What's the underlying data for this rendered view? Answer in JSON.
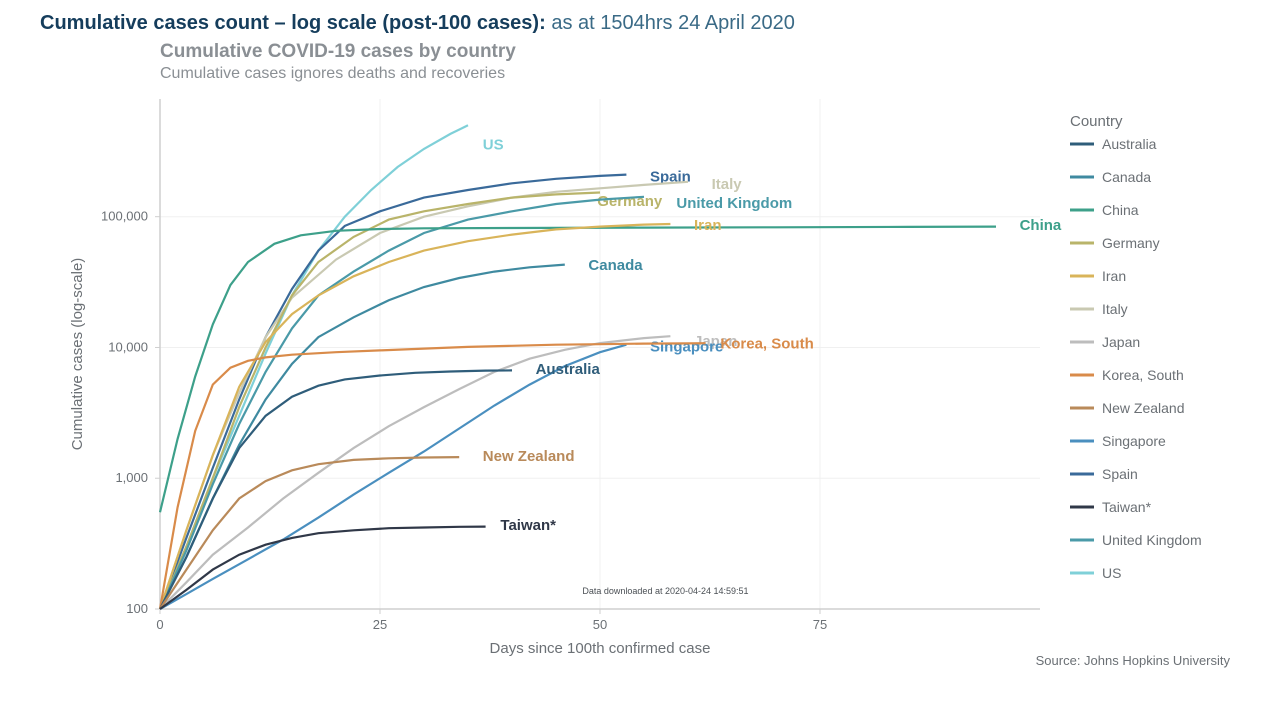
{
  "headline": {
    "bold": "Cumulative cases count – log scale (post-100 cases):",
    "rest": " as at 1504hrs 24 April 2020"
  },
  "chart": {
    "type": "line",
    "title": "Cumulative COVID-19 cases by country",
    "subtitle": "Cumulative cases ignores deaths and recoveries",
    "xlabel": "Days since 100th confirmed case",
    "ylabel": "Cumulative cases (log-scale)",
    "xlim": [
      0,
      100
    ],
    "xticks": [
      0,
      25,
      50,
      75
    ],
    "ylim_log": [
      2,
      5.9
    ],
    "yticks": [
      100,
      1000,
      10000,
      100000
    ],
    "ytick_labels": [
      "100",
      "1,000",
      "10,000",
      "100,000"
    ],
    "background_color": "#ffffff",
    "grid_color": "#f0f0f0",
    "axis_color": "#cfcfcf",
    "text_color": "#6b7075",
    "title_fontsize": 19,
    "subtitle_fontsize": 16,
    "label_fontsize": 15,
    "tick_fontsize": 13,
    "line_width": 2.2,
    "download_note": "Data downloaded at 2020-04-24 14:59:51",
    "source": "Source: Johns Hopkins University",
    "legend": {
      "title": "Country",
      "items": [
        {
          "label": "Australia",
          "color": "#2f5d7a"
        },
        {
          "label": "Canada",
          "color": "#3f8aa0"
        },
        {
          "label": "China",
          "color": "#3da08a"
        },
        {
          "label": "Germany",
          "color": "#b9b46a"
        },
        {
          "label": "Iran",
          "color": "#d9b45a"
        },
        {
          "label": "Italy",
          "color": "#c9c9b2"
        },
        {
          "label": "Japan",
          "color": "#bdbdbd"
        },
        {
          "label": "Korea, South",
          "color": "#d98b4a"
        },
        {
          "label": "New Zealand",
          "color": "#b98a5a"
        },
        {
          "label": "Singapore",
          "color": "#4a8fbf"
        },
        {
          "label": "Spain",
          "color": "#3a6a9a"
        },
        {
          "label": "Taiwan*",
          "color": "#303848"
        },
        {
          "label": "United Kingdom",
          "color": "#4a9aa8"
        },
        {
          "label": "US",
          "color": "#7fd0d8"
        }
      ]
    },
    "series": [
      {
        "name": "US",
        "color": "#7fd0d8",
        "label_xy": [
          36,
          350000
        ],
        "points": [
          [
            0,
            100
          ],
          [
            3,
            300
          ],
          [
            6,
            1000
          ],
          [
            9,
            3000
          ],
          [
            12,
            9000
          ],
          [
            15,
            25000
          ],
          [
            18,
            55000
          ],
          [
            21,
            100000
          ],
          [
            24,
            160000
          ],
          [
            27,
            240000
          ],
          [
            30,
            330000
          ],
          [
            33,
            430000
          ],
          [
            35,
            500000
          ]
        ]
      },
      {
        "name": "Spain",
        "color": "#3a6a9a",
        "label_xy": [
          55,
          200000
        ],
        "points": [
          [
            0,
            100
          ],
          [
            3,
            350
          ],
          [
            6,
            1200
          ],
          [
            9,
            4000
          ],
          [
            12,
            12000
          ],
          [
            15,
            28000
          ],
          [
            18,
            55000
          ],
          [
            21,
            85000
          ],
          [
            25,
            110000
          ],
          [
            30,
            140000
          ],
          [
            35,
            160000
          ],
          [
            40,
            180000
          ],
          [
            45,
            195000
          ],
          [
            50,
            205000
          ],
          [
            53,
            210000
          ]
        ]
      },
      {
        "name": "Italy",
        "color": "#c9c9b2",
        "label_xy": [
          62,
          175000
        ],
        "points": [
          [
            0,
            100
          ],
          [
            3,
            400
          ],
          [
            6,
            1500
          ],
          [
            9,
            4500
          ],
          [
            12,
            12000
          ],
          [
            15,
            24000
          ],
          [
            20,
            47000
          ],
          [
            25,
            75000
          ],
          [
            30,
            100000
          ],
          [
            35,
            120000
          ],
          [
            40,
            140000
          ],
          [
            45,
            155000
          ],
          [
            50,
            165000
          ],
          [
            55,
            175000
          ],
          [
            60,
            185000
          ]
        ]
      },
      {
        "name": "Germany",
        "color": "#b9b46a",
        "label_xy": [
          49,
          130000
        ],
        "points": [
          [
            0,
            100
          ],
          [
            3,
            300
          ],
          [
            6,
            1000
          ],
          [
            9,
            3500
          ],
          [
            12,
            10000
          ],
          [
            15,
            25000
          ],
          [
            18,
            45000
          ],
          [
            22,
            70000
          ],
          [
            26,
            95000
          ],
          [
            30,
            110000
          ],
          [
            35,
            125000
          ],
          [
            40,
            140000
          ],
          [
            45,
            148000
          ],
          [
            50,
            153000
          ]
        ]
      },
      {
        "name": "United Kingdom",
        "color": "#4a9aa8",
        "label_xy": [
          58,
          125000
        ],
        "points": [
          [
            0,
            100
          ],
          [
            3,
            280
          ],
          [
            6,
            900
          ],
          [
            9,
            2600
          ],
          [
            12,
            6500
          ],
          [
            15,
            14000
          ],
          [
            18,
            25000
          ],
          [
            22,
            38000
          ],
          [
            26,
            55000
          ],
          [
            30,
            75000
          ],
          [
            35,
            95000
          ],
          [
            40,
            110000
          ],
          [
            45,
            125000
          ],
          [
            50,
            135000
          ],
          [
            55,
            142000
          ]
        ]
      },
      {
        "name": "China",
        "color": "#3da08a",
        "label_xy": [
          97,
          85000
        ],
        "points": [
          [
            0,
            550
          ],
          [
            2,
            2000
          ],
          [
            4,
            6000
          ],
          [
            6,
            15000
          ],
          [
            8,
            30000
          ],
          [
            10,
            45000
          ],
          [
            13,
            62000
          ],
          [
            16,
            72000
          ],
          [
            20,
            78000
          ],
          [
            25,
            80500
          ],
          [
            30,
            81500
          ],
          [
            40,
            82000
          ],
          [
            55,
            82500
          ],
          [
            70,
            83000
          ],
          [
            85,
            83500
          ],
          [
            95,
            84000
          ]
        ]
      },
      {
        "name": "Iran",
        "color": "#d9b45a",
        "label_xy": [
          60,
          85000
        ],
        "points": [
          [
            0,
            100
          ],
          [
            3,
            400
          ],
          [
            6,
            1500
          ],
          [
            9,
            5000
          ],
          [
            12,
            11000
          ],
          [
            15,
            18000
          ],
          [
            18,
            25000
          ],
          [
            22,
            35000
          ],
          [
            26,
            45000
          ],
          [
            30,
            55000
          ],
          [
            35,
            65000
          ],
          [
            40,
            73000
          ],
          [
            45,
            80000
          ],
          [
            50,
            84000
          ],
          [
            55,
            87000
          ],
          [
            58,
            88000
          ]
        ]
      },
      {
        "name": "Canada",
        "color": "#3f8aa0",
        "label_xy": [
          48,
          42000
        ],
        "points": [
          [
            0,
            100
          ],
          [
            3,
            250
          ],
          [
            6,
            700
          ],
          [
            9,
            1800
          ],
          [
            12,
            4000
          ],
          [
            15,
            7500
          ],
          [
            18,
            12000
          ],
          [
            22,
            17000
          ],
          [
            26,
            23000
          ],
          [
            30,
            29000
          ],
          [
            34,
            34000
          ],
          [
            38,
            38000
          ],
          [
            42,
            41000
          ],
          [
            46,
            43000
          ]
        ]
      },
      {
        "name": "Japan",
        "color": "#bdbdbd",
        "label_xy": [
          60,
          11000
        ],
        "points": [
          [
            0,
            100
          ],
          [
            3,
            160
          ],
          [
            6,
            260
          ],
          [
            10,
            420
          ],
          [
            14,
            700
          ],
          [
            18,
            1100
          ],
          [
            22,
            1700
          ],
          [
            26,
            2500
          ],
          [
            30,
            3500
          ],
          [
            34,
            4800
          ],
          [
            38,
            6500
          ],
          [
            42,
            8200
          ],
          [
            46,
            9600
          ],
          [
            50,
            10800
          ],
          [
            55,
            11800
          ],
          [
            58,
            12200
          ]
        ]
      },
      {
        "name": "Singapore",
        "color": "#4a8fbf",
        "label_xy": [
          55,
          10000
        ],
        "points": [
          [
            0,
            100
          ],
          [
            3,
            130
          ],
          [
            6,
            170
          ],
          [
            10,
            240
          ],
          [
            14,
            340
          ],
          [
            18,
            500
          ],
          [
            22,
            750
          ],
          [
            26,
            1100
          ],
          [
            30,
            1600
          ],
          [
            34,
            2400
          ],
          [
            38,
            3600
          ],
          [
            42,
            5200
          ],
          [
            46,
            7200
          ],
          [
            50,
            9200
          ],
          [
            53,
            10500
          ]
        ]
      },
      {
        "name": "Korea, South",
        "color": "#d98b4a",
        "label_xy": [
          63,
          10500
        ],
        "points": [
          [
            0,
            100
          ],
          [
            2,
            600
          ],
          [
            4,
            2300
          ],
          [
            6,
            5200
          ],
          [
            8,
            7000
          ],
          [
            10,
            7900
          ],
          [
            12,
            8400
          ],
          [
            15,
            8800
          ],
          [
            20,
            9200
          ],
          [
            25,
            9500
          ],
          [
            30,
            9800
          ],
          [
            35,
            10100
          ],
          [
            40,
            10300
          ],
          [
            45,
            10500
          ],
          [
            50,
            10600
          ],
          [
            55,
            10700
          ],
          [
            60,
            10750
          ],
          [
            62,
            10770
          ]
        ]
      },
      {
        "name": "Australia",
        "color": "#2f5d7a",
        "label_xy": [
          42,
          6700
        ],
        "points": [
          [
            0,
            100
          ],
          [
            3,
            250
          ],
          [
            6,
            700
          ],
          [
            9,
            1700
          ],
          [
            12,
            3000
          ],
          [
            15,
            4200
          ],
          [
            18,
            5100
          ],
          [
            21,
            5700
          ],
          [
            25,
            6100
          ],
          [
            29,
            6400
          ],
          [
            33,
            6550
          ],
          [
            37,
            6650
          ],
          [
            40,
            6680
          ]
        ]
      },
      {
        "name": "New Zealand",
        "color": "#b98a5a",
        "label_xy": [
          36,
          1450
        ],
        "points": [
          [
            0,
            100
          ],
          [
            3,
            200
          ],
          [
            6,
            400
          ],
          [
            9,
            700
          ],
          [
            12,
            950
          ],
          [
            15,
            1150
          ],
          [
            18,
            1280
          ],
          [
            22,
            1380
          ],
          [
            26,
            1420
          ],
          [
            30,
            1440
          ],
          [
            34,
            1450
          ]
        ]
      },
      {
        "name": "Taiwan*",
        "color": "#303848",
        "label_xy": [
          38,
          430
        ],
        "points": [
          [
            0,
            100
          ],
          [
            3,
            140
          ],
          [
            6,
            200
          ],
          [
            9,
            260
          ],
          [
            12,
            310
          ],
          [
            15,
            350
          ],
          [
            18,
            380
          ],
          [
            22,
            400
          ],
          [
            26,
            415
          ],
          [
            30,
            420
          ],
          [
            34,
            425
          ],
          [
            37,
            427
          ]
        ]
      }
    ]
  }
}
